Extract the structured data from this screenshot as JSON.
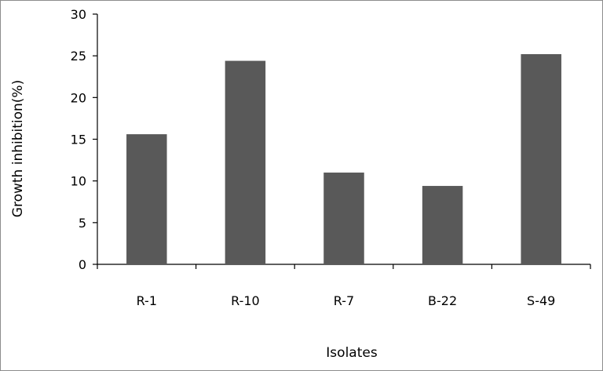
{
  "chart_data": {
    "type": "bar",
    "title": "",
    "xlabel": "Isolates",
    "ylabel": "Growth inhibition(%)",
    "categories": [
      "R-1",
      "R-10",
      "R-7",
      "B-22",
      "S-49"
    ],
    "values": [
      15.6,
      24.4,
      11.0,
      9.4,
      25.2
    ],
    "ylim": [
      0,
      30
    ],
    "yticks": [
      "0",
      "5",
      "10",
      "15",
      "20",
      "25",
      "30"
    ],
    "grid": false,
    "legend": "none",
    "bar_color": "#595959"
  }
}
